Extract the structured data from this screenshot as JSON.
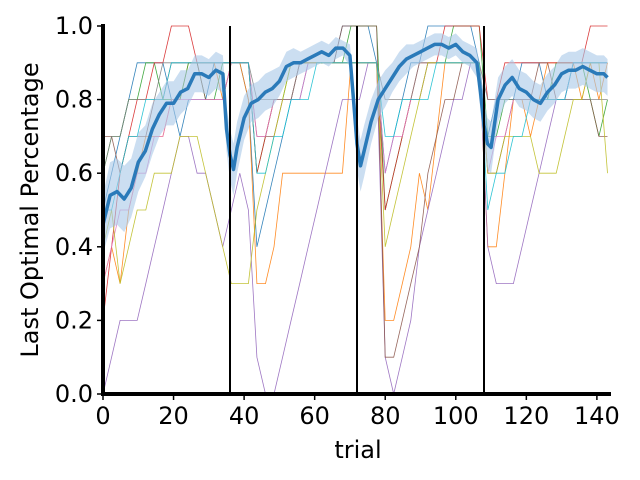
{
  "chart_data": {
    "type": "line",
    "xlabel": "trial",
    "ylabel": "Last Optimal Percentage",
    "xlim": [
      0,
      144
    ],
    "ylim": [
      0,
      1.0
    ],
    "xticks": [
      0,
      20,
      40,
      60,
      80,
      100,
      120,
      140
    ],
    "yticks": [
      0.0,
      0.2,
      0.4,
      0.6,
      0.8,
      1.0
    ],
    "ytick_labels": [
      "0.0",
      "0.2",
      "0.4",
      "0.6",
      "0.8",
      "1.0"
    ],
    "block_boundaries": [
      36,
      72,
      108
    ],
    "grid": false,
    "legend": "none",
    "mean_series": {
      "color": "#2a7ab9",
      "band_color": "#a9c8e8",
      "x": [
        0,
        2,
        4,
        6,
        8,
        10,
        12,
        14,
        16,
        18,
        20,
        22,
        24,
        26,
        28,
        30,
        32,
        34,
        35,
        36,
        37,
        38,
        40,
        42,
        44,
        46,
        48,
        50,
        52,
        54,
        56,
        58,
        60,
        62,
        64,
        66,
        68,
        70,
        71,
        72,
        73,
        74,
        76,
        78,
        80,
        82,
        84,
        86,
        88,
        90,
        92,
        94,
        96,
        98,
        100,
        102,
        104,
        106,
        107,
        108,
        109,
        110,
        112,
        114,
        116,
        118,
        120,
        122,
        124,
        126,
        128,
        130,
        132,
        134,
        136,
        138,
        140,
        142,
        143
      ],
      "y": [
        0.46,
        0.54,
        0.55,
        0.53,
        0.56,
        0.63,
        0.66,
        0.72,
        0.76,
        0.79,
        0.79,
        0.82,
        0.83,
        0.87,
        0.87,
        0.86,
        0.88,
        0.87,
        0.72,
        0.65,
        0.61,
        0.67,
        0.75,
        0.79,
        0.8,
        0.82,
        0.83,
        0.85,
        0.89,
        0.9,
        0.9,
        0.91,
        0.92,
        0.93,
        0.92,
        0.94,
        0.94,
        0.92,
        0.8,
        0.68,
        0.62,
        0.66,
        0.74,
        0.8,
        0.83,
        0.86,
        0.89,
        0.91,
        0.92,
        0.93,
        0.94,
        0.95,
        0.95,
        0.94,
        0.95,
        0.93,
        0.92,
        0.9,
        0.82,
        0.73,
        0.68,
        0.67,
        0.8,
        0.84,
        0.86,
        0.83,
        0.82,
        0.8,
        0.79,
        0.82,
        0.84,
        0.87,
        0.88,
        0.88,
        0.89,
        0.88,
        0.87,
        0.87,
        0.86
      ],
      "band_halfwidth": [
        0.08,
        0.09,
        0.09,
        0.09,
        0.08,
        0.08,
        0.07,
        0.07,
        0.06,
        0.06,
        0.06,
        0.06,
        0.05,
        0.05,
        0.05,
        0.05,
        0.05,
        0.05,
        0.06,
        0.07,
        0.07,
        0.07,
        0.06,
        0.05,
        0.05,
        0.05,
        0.05,
        0.04,
        0.04,
        0.04,
        0.03,
        0.03,
        0.03,
        0.03,
        0.03,
        0.03,
        0.02,
        0.03,
        0.05,
        0.07,
        0.07,
        0.07,
        0.06,
        0.05,
        0.05,
        0.04,
        0.04,
        0.04,
        0.03,
        0.03,
        0.03,
        0.03,
        0.03,
        0.03,
        0.03,
        0.03,
        0.03,
        0.04,
        0.05,
        0.07,
        0.07,
        0.07,
        0.06,
        0.05,
        0.05,
        0.05,
        0.05,
        0.05,
        0.05,
        0.05,
        0.05,
        0.05,
        0.05,
        0.05,
        0.05,
        0.05,
        0.05,
        0.05,
        0.05
      ]
    },
    "series": [
      {
        "color": "#1f77b4",
        "values": [
          0.5,
          0.6,
          0.7,
          0.8,
          0.9,
          0.9,
          0.9,
          0.9,
          0.8,
          0.7,
          0.8,
          0.8,
          0.8,
          0.9,
          0.9,
          0.9,
          0.9,
          0.8,
          0.4,
          0.5,
          0.6,
          0.7,
          0.8,
          0.8,
          0.9,
          0.9,
          0.9,
          0.9,
          1.0,
          1.0,
          1.0,
          1.0,
          0.9,
          0.6,
          0.7,
          0.8,
          0.9,
          0.9,
          1.0,
          1.0,
          1.0,
          1.0,
          1.0,
          1.0,
          0.9,
          0.7,
          0.8,
          0.8,
          0.8,
          0.9,
          0.9,
          0.9,
          0.8,
          0.8,
          0.8,
          0.9,
          0.9,
          0.9,
          0.9,
          0.9
        ]
      },
      {
        "color": "#ff7f0e",
        "values": [
          0.3,
          0.4,
          0.3,
          0.5,
          0.6,
          0.7,
          0.7,
          0.7,
          0.8,
          0.8,
          0.9,
          0.9,
          0.9,
          0.9,
          0.8,
          0.9,
          0.9,
          0.8,
          0.3,
          0.3,
          0.4,
          0.6,
          0.6,
          0.6,
          0.6,
          0.6,
          0.6,
          0.6,
          0.6,
          0.9,
          0.9,
          0.9,
          0.9,
          0.2,
          0.2,
          0.3,
          0.4,
          0.6,
          0.5,
          0.7,
          0.9,
          0.9,
          0.9,
          0.9,
          0.9,
          0.4,
          0.4,
          0.6,
          0.8,
          0.8,
          0.7,
          0.8,
          0.9,
          0.9,
          0.9,
          0.9,
          0.8,
          0.9,
          0.8,
          0.9
        ]
      },
      {
        "color": "#2ca02c",
        "values": [
          0.6,
          0.7,
          0.7,
          0.8,
          0.8,
          0.9,
          0.9,
          0.8,
          0.8,
          0.8,
          0.9,
          0.9,
          0.8,
          0.8,
          0.9,
          0.9,
          0.9,
          0.9,
          0.6,
          0.7,
          0.8,
          0.8,
          0.9,
          0.9,
          0.9,
          0.9,
          0.9,
          0.9,
          0.9,
          1.0,
          1.0,
          1.0,
          1.0,
          0.5,
          0.6,
          0.7,
          0.8,
          0.8,
          0.9,
          0.9,
          0.9,
          1.0,
          1.0,
          1.0,
          1.0,
          0.7,
          0.7,
          0.8,
          0.8,
          0.8,
          0.8,
          0.8,
          0.8,
          0.9,
          0.9,
          0.9,
          0.9,
          0.8,
          0.7,
          0.8
        ]
      },
      {
        "color": "#d62728",
        "values": [
          0.2,
          0.4,
          0.6,
          0.7,
          0.8,
          0.8,
          0.9,
          0.9,
          1.0,
          1.0,
          1.0,
          0.9,
          0.9,
          0.9,
          0.9,
          0.9,
          0.9,
          0.9,
          0.6,
          0.7,
          0.8,
          0.8,
          0.8,
          0.9,
          0.9,
          0.9,
          0.9,
          0.9,
          0.9,
          0.9,
          0.9,
          0.9,
          0.9,
          0.5,
          0.6,
          0.7,
          0.8,
          0.9,
          0.9,
          0.9,
          1.0,
          1.0,
          1.0,
          1.0,
          1.0,
          0.8,
          0.8,
          0.9,
          0.9,
          0.9,
          0.9,
          0.9,
          0.9,
          0.9,
          0.9,
          0.9,
          0.9,
          1.0,
          1.0,
          1.0
        ]
      },
      {
        "color": "#9467bd",
        "values": [
          0.0,
          0.1,
          0.2,
          0.2,
          0.2,
          0.3,
          0.4,
          0.5,
          0.6,
          0.7,
          0.7,
          0.6,
          0.6,
          0.5,
          0.4,
          0.5,
          0.6,
          0.5,
          0.1,
          0.0,
          0.0,
          0.1,
          0.2,
          0.3,
          0.4,
          0.5,
          0.6,
          0.7,
          0.8,
          0.8,
          0.8,
          0.9,
          0.9,
          0.1,
          0.0,
          0.1,
          0.2,
          0.4,
          0.5,
          0.6,
          0.7,
          0.8,
          0.8,
          0.9,
          0.9,
          0.4,
          0.3,
          0.3,
          0.3,
          0.4,
          0.5,
          0.6,
          0.7,
          0.8,
          0.8,
          0.9,
          0.9,
          0.9,
          0.9,
          0.9
        ]
      },
      {
        "color": "#8c564b",
        "values": [
          0.7,
          0.7,
          0.6,
          0.7,
          0.7,
          0.7,
          0.8,
          0.8,
          0.9,
          0.9,
          0.9,
          0.9,
          0.8,
          0.8,
          0.8,
          0.9,
          0.9,
          0.9,
          0.7,
          0.7,
          0.7,
          0.8,
          0.8,
          0.9,
          0.9,
          0.9,
          0.9,
          0.9,
          1.0,
          1.0,
          1.0,
          1.0,
          1.0,
          0.1,
          0.1,
          0.2,
          0.3,
          0.4,
          0.6,
          0.7,
          0.8,
          0.8,
          0.9,
          0.9,
          0.9,
          0.6,
          0.6,
          0.7,
          0.8,
          0.8,
          0.8,
          0.9,
          0.9,
          0.8,
          0.8,
          0.8,
          0.8,
          0.8,
          0.7,
          0.7
        ]
      },
      {
        "color": "#e377c2",
        "values": [
          0.3,
          0.4,
          0.5,
          0.5,
          0.6,
          0.6,
          0.7,
          0.7,
          0.8,
          0.8,
          0.8,
          0.8,
          0.8,
          0.8,
          0.8,
          0.9,
          0.9,
          0.9,
          0.7,
          0.7,
          0.8,
          0.8,
          0.8,
          0.8,
          0.9,
          0.9,
          0.9,
          0.9,
          0.9,
          0.9,
          0.9,
          0.9,
          0.9,
          0.6,
          0.7,
          0.7,
          0.8,
          0.8,
          0.9,
          0.9,
          0.9,
          0.9,
          0.9,
          0.9,
          0.9,
          0.6,
          0.7,
          0.7,
          0.8,
          0.8,
          0.8,
          0.8,
          0.8,
          0.8,
          0.8,
          0.9,
          0.9,
          0.9,
          0.9,
          0.9
        ]
      },
      {
        "color": "#7f7f7f",
        "values": [
          0.6,
          0.7,
          0.7,
          0.8,
          0.8,
          0.8,
          0.8,
          0.9,
          0.9,
          0.9,
          0.9,
          0.9,
          0.9,
          0.9,
          0.9,
          0.9,
          0.9,
          0.9,
          0.8,
          0.8,
          0.8,
          0.8,
          0.8,
          0.9,
          0.9,
          0.9,
          0.9,
          0.9,
          0.9,
          0.9,
          0.9,
          0.9,
          0.9,
          0.8,
          0.8,
          0.8,
          0.8,
          0.9,
          0.9,
          0.9,
          0.9,
          0.9,
          0.9,
          0.9,
          0.9,
          0.8,
          0.8,
          0.8,
          0.8,
          0.8,
          0.8,
          0.8,
          0.8,
          0.8,
          0.8,
          0.8,
          0.8,
          0.8,
          0.8,
          0.8
        ]
      },
      {
        "color": "#bcbd22",
        "values": [
          0.4,
          0.5,
          0.3,
          0.4,
          0.5,
          0.5,
          0.6,
          0.6,
          0.6,
          0.7,
          0.7,
          0.7,
          0.6,
          0.5,
          0.4,
          0.3,
          0.3,
          0.3,
          0.5,
          0.6,
          0.7,
          0.8,
          0.9,
          0.9,
          0.9,
          0.9,
          0.9,
          0.9,
          0.9,
          0.9,
          0.9,
          0.9,
          0.9,
          0.4,
          0.5,
          0.6,
          0.7,
          0.8,
          0.9,
          0.9,
          0.9,
          0.9,
          0.9,
          0.9,
          0.9,
          0.6,
          0.6,
          0.7,
          0.7,
          0.7,
          0.7,
          0.6,
          0.6,
          0.6,
          0.7,
          0.8,
          0.8,
          0.9,
          0.9,
          0.6
        ]
      },
      {
        "color": "#17becf",
        "values": [
          0.5,
          0.5,
          0.6,
          0.7,
          0.7,
          0.8,
          0.8,
          0.8,
          0.9,
          0.9,
          0.9,
          0.9,
          0.9,
          0.9,
          0.9,
          0.9,
          0.9,
          0.9,
          0.6,
          0.6,
          0.7,
          0.7,
          0.8,
          0.8,
          0.8,
          0.9,
          0.9,
          0.9,
          0.9,
          0.9,
          0.9,
          0.9,
          0.9,
          0.7,
          0.7,
          0.8,
          0.8,
          0.8,
          0.8,
          0.9,
          0.9,
          0.9,
          0.9,
          0.9,
          0.9,
          0.5,
          0.6,
          0.6,
          0.7,
          0.7,
          0.8,
          0.8,
          0.8,
          0.8,
          0.8,
          0.9,
          0.9,
          0.9,
          0.9,
          0.9
        ]
      }
    ]
  }
}
